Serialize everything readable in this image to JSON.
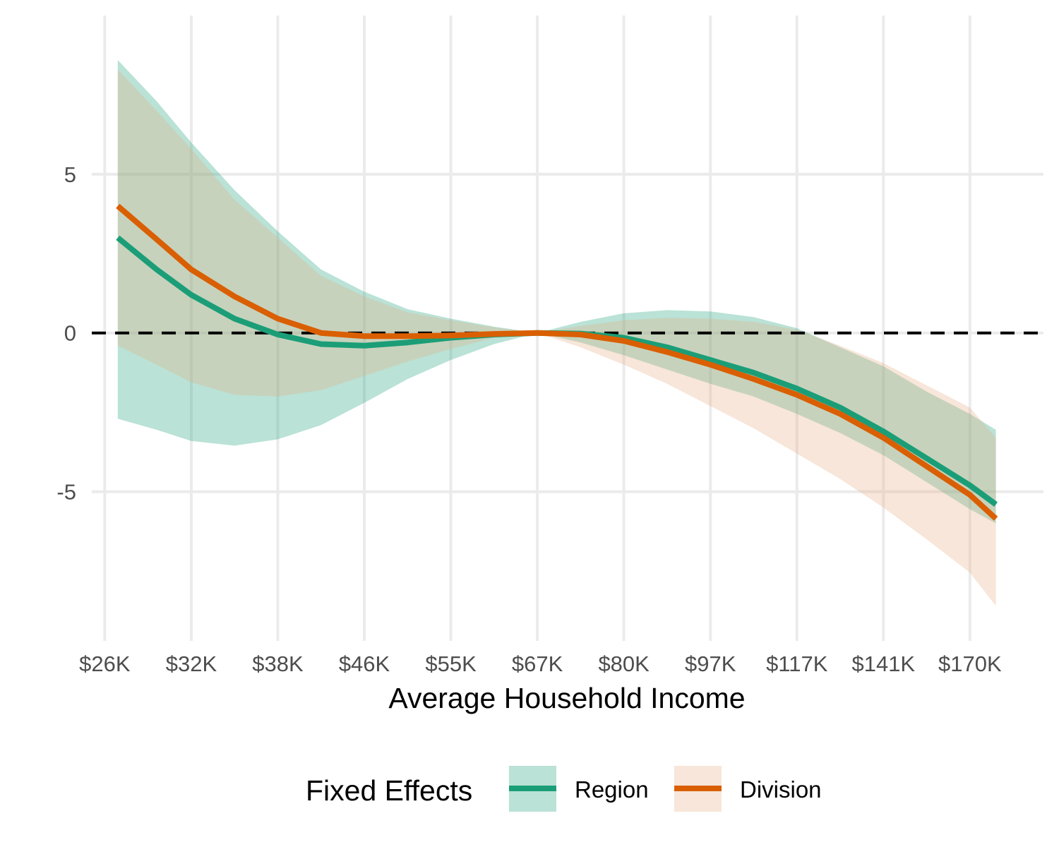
{
  "chart_data": {
    "type": "line",
    "title": "",
    "xlabel": "Average Household Income",
    "ylabel": "",
    "x_ticks": [
      "$26K",
      "$32K",
      "$38K",
      "$46K",
      "$55K",
      "$67K",
      "$80K",
      "$97K",
      "$117K",
      "$141K",
      "$170K"
    ],
    "y_ticks": [
      5,
      0,
      -5
    ],
    "xlim": [
      -0.15,
      10.85
    ],
    "ylim": [
      -9.7,
      10.0
    ],
    "grid": true,
    "reference_line": {
      "y": 0,
      "style": "dashed",
      "color": "#000000"
    },
    "legend": {
      "title": "Fixed Effects",
      "position": "bottom"
    },
    "series": [
      {
        "name": "Region",
        "color": "#1b9e77",
        "band_color": "#1b9e77",
        "x": [
          0.15,
          0.6,
          1.0,
          1.5,
          2.0,
          2.5,
          3.0,
          3.5,
          4.0,
          4.5,
          5.0,
          5.5,
          6.0,
          6.5,
          7.0,
          7.5,
          8.0,
          8.5,
          9.0,
          9.5,
          10.0,
          10.3
        ],
        "y": [
          3.0,
          2.0,
          1.2,
          0.45,
          -0.05,
          -0.35,
          -0.4,
          -0.3,
          -0.15,
          -0.05,
          0.0,
          -0.02,
          -0.15,
          -0.45,
          -0.85,
          -1.25,
          -1.75,
          -2.35,
          -3.1,
          -3.95,
          -4.8,
          -5.4
        ],
        "lower": [
          -2.7,
          -3.05,
          -3.4,
          -3.55,
          -3.35,
          -2.9,
          -2.2,
          -1.45,
          -0.85,
          -0.35,
          0.0,
          -0.3,
          -0.7,
          -1.15,
          -1.6,
          -2.0,
          -2.55,
          -3.15,
          -3.85,
          -4.7,
          -5.55,
          -6.0
        ],
        "upper": [
          8.6,
          7.3,
          6.0,
          4.5,
          3.2,
          2.0,
          1.3,
          0.75,
          0.45,
          0.2,
          0.0,
          0.35,
          0.62,
          0.72,
          0.68,
          0.5,
          0.15,
          -0.45,
          -1.05,
          -1.85,
          -2.55,
          -3.05
        ]
      },
      {
        "name": "Division",
        "color": "#d95f02",
        "band_color": "#e6ab80",
        "x": [
          0.15,
          0.6,
          1.0,
          1.5,
          2.0,
          2.5,
          3.0,
          3.5,
          4.0,
          4.5,
          5.0,
          5.5,
          6.0,
          6.5,
          7.0,
          7.5,
          8.0,
          8.5,
          9.0,
          9.5,
          10.0,
          10.3
        ],
        "y": [
          4.0,
          2.95,
          2.0,
          1.15,
          0.45,
          0.0,
          -0.1,
          -0.1,
          -0.08,
          -0.03,
          0.0,
          -0.05,
          -0.25,
          -0.6,
          -1.0,
          -1.45,
          -1.95,
          -2.55,
          -3.3,
          -4.2,
          -5.1,
          -5.85
        ],
        "lower": [
          -0.4,
          -1.0,
          -1.55,
          -1.95,
          -2.0,
          -1.8,
          -1.35,
          -0.9,
          -0.5,
          -0.15,
          0.0,
          -0.45,
          -1.0,
          -1.6,
          -2.3,
          -3.0,
          -3.8,
          -4.6,
          -5.5,
          -6.5,
          -7.55,
          -8.6
        ],
        "upper": [
          8.3,
          7.0,
          5.8,
          4.2,
          3.0,
          1.8,
          1.15,
          0.65,
          0.4,
          0.18,
          0.0,
          0.22,
          0.4,
          0.48,
          0.45,
          0.35,
          0.1,
          -0.4,
          -0.95,
          -1.65,
          -2.35,
          -3.3
        ]
      }
    ]
  }
}
